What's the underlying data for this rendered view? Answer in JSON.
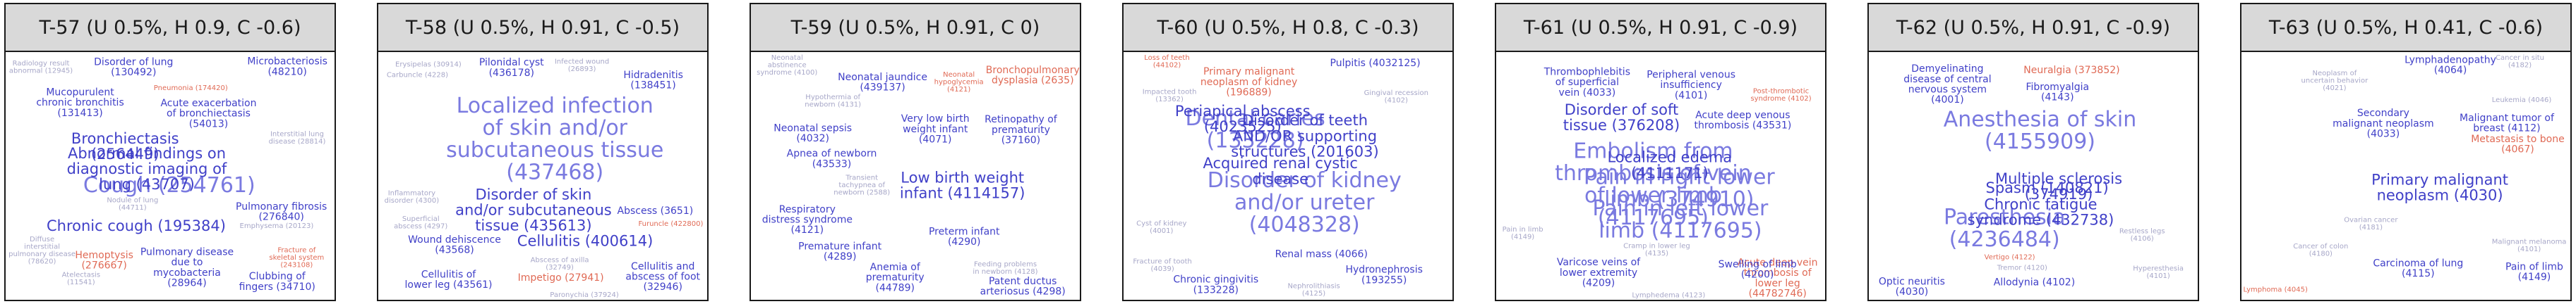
{
  "colors": {
    "frame": "#1a1a1a",
    "header_bg": "#d9d9d9",
    "word_dark": "#4040c8",
    "word_mid": "#7a7ae0",
    "word_faint": "#a7a7c8",
    "word_alt": "#e06a55"
  },
  "chart_data": [
    {
      "type": "wordcloud",
      "title": "T-57 (U 0.5%, H 0.9, C -0.6)",
      "words": [
        {
          "text": "Cough (254761)",
          "rank": 1
        },
        {
          "text": "Bronchiectasis (256449)",
          "rank": 2
        },
        {
          "text": "Chronic cough (195384)",
          "rank": 2
        },
        {
          "text": "Abnormal findings on diagnostic imaging of lung (43707)",
          "rank": 2
        },
        {
          "text": "Disorder of lung (130492)",
          "rank": 3
        },
        {
          "text": "Hemoptysis (276667)",
          "rank": 3
        },
        {
          "text": "Pulmonary disease due to mycobacteria (28964)",
          "rank": 3
        },
        {
          "text": "Microbacteriosis (48210)",
          "rank": 3
        },
        {
          "text": "Acute exacerbation of bronchiectasis (54013)",
          "rank": 3
        },
        {
          "text": "Mucopurulent chronic bronchitis (131413)",
          "rank": 3
        },
        {
          "text": "Pulmonary fibrosis (276840)",
          "rank": 3
        },
        {
          "text": "Clubbing of fingers (34710)",
          "rank": 3
        },
        {
          "text": "Fracture of skeletal system (243108)",
          "rank": 4
        },
        {
          "text": "Diffuse interstitial pulmonary disease (78620)",
          "rank": 4
        },
        {
          "text": "Atelectasis (11541)",
          "rank": 4
        },
        {
          "text": "Radiology result abnormal (12945)",
          "rank": 4
        },
        {
          "text": "Interstitial lung disease (28814)",
          "rank": 4
        },
        {
          "text": "Nodule of lung (44711)",
          "rank": 4
        },
        {
          "text": "Emphysema (20123)",
          "rank": 4
        },
        {
          "text": "Pneumonia (174420)",
          "rank": 4
        }
      ]
    },
    {
      "type": "wordcloud",
      "title": "T-58 (U 0.5%, H 0.91, C -0.5)",
      "words": [
        {
          "text": "Localized infection of skin and/or subcutaneous tissue (437468)",
          "rank": 1
        },
        {
          "text": "Disorder of skin and/or subcutaneous tissue (435613)",
          "rank": 2
        },
        {
          "text": "Cellulitis (400614)",
          "rank": 2
        },
        {
          "text": "Abscess (3651)",
          "rank": 3
        },
        {
          "text": "Cellulitis of lower leg (43561)",
          "rank": 3
        },
        {
          "text": "Impetigo (27941)",
          "rank": 3
        },
        {
          "text": "Cellulitis and abscess of foot (32946)",
          "rank": 3
        },
        {
          "text": "Wound dehiscence (43568)",
          "rank": 3
        },
        {
          "text": "Hidradenitis (138451)",
          "rank": 3
        },
        {
          "text": "Pilonidal cyst (436178)",
          "rank": 3
        },
        {
          "text": "Abscess of axilla (32749)",
          "rank": 4
        },
        {
          "text": "Superficial abscess (4297)",
          "rank": 4
        },
        {
          "text": "Furuncle (422800)",
          "rank": 4
        },
        {
          "text": "Carbuncle (4228)",
          "rank": 4
        },
        {
          "text": "Erysipelas (30914)",
          "rank": 4
        },
        {
          "text": "Infected wound (26893)",
          "rank": 4
        },
        {
          "text": "Paronychia (37924)",
          "rank": 4
        },
        {
          "text": "Inflammatory disorder (4300)",
          "rank": 4
        }
      ]
    },
    {
      "type": "wordcloud",
      "title": "T-59 (U 0.5%, H 0.91, C 0)",
      "words": [
        {
          "text": "Low birth weight infant (4114157)",
          "rank": 2
        },
        {
          "text": "Neonatal jaundice (439137)",
          "rank": 3
        },
        {
          "text": "Preterm infant (4290)",
          "rank": 3
        },
        {
          "text": "Respiratory distress syndrome (4121)",
          "rank": 3
        },
        {
          "text": "Premature infant (4289)",
          "rank": 3
        },
        {
          "text": "Bronchopulmonary dysplasia (2635)",
          "rank": 3
        },
        {
          "text": "Very low birth weight infant (4071)",
          "rank": 3
        },
        {
          "text": "Apnea of newborn (43533)",
          "rank": 3
        },
        {
          "text": "Anemia of prematurity (44789)",
          "rank": 3
        },
        {
          "text": "Neonatal sepsis (4032)",
          "rank": 3
        },
        {
          "text": "Patent ductus arteriosus (4298)",
          "rank": 3
        },
        {
          "text": "Retinopathy of prematurity (37160)",
          "rank": 3
        },
        {
          "text": "Neonatal hypoglycemia (4121)",
          "rank": 4
        },
        {
          "text": "Transient tachypnea of newborn (2588)",
          "rank": 4
        },
        {
          "text": "Feeding problems in newborn (4128)",
          "rank": 4
        },
        {
          "text": "Hypothermia of newborn (4131)",
          "rank": 4
        },
        {
          "text": "Neonatal abstinence syndrome (4100)",
          "rank": 4
        }
      ]
    },
    {
      "type": "wordcloud",
      "title": "T-60 (U 0.5%, H 0.8, C -0.3)",
      "words": [
        {
          "text": "Dental caries (133228)",
          "rank": 1
        },
        {
          "text": "Disorder of kidney and/or ureter (4048328)",
          "rank": 1
        },
        {
          "text": "Disorder of teeth AND/OR supporting structures (201603)",
          "rank": 2
        },
        {
          "text": "Periapical abscess (4023525)",
          "rank": 2
        },
        {
          "text": "Acquired renal cystic disease",
          "rank": 2
        },
        {
          "text": "Primary malignant neoplasm of kidney (196889)",
          "rank": 3
        },
        {
          "text": "Chronic gingivitis (133228)",
          "rank": 3
        },
        {
          "text": "Hydronephrosis (193255)",
          "rank": 3
        },
        {
          "text": "Pulpitis (4032125)",
          "rank": 3
        },
        {
          "text": "Renal mass (4066)",
          "rank": 3
        },
        {
          "text": "Fracture of tooth (4039)",
          "rank": 4
        },
        {
          "text": "Impacted tooth (13362)",
          "rank": 4
        },
        {
          "text": "Loss of teeth (44102)",
          "rank": 4
        },
        {
          "text": "Gingival recession (4102)",
          "rank": 4
        },
        {
          "text": "Cyst of kidney (4001)",
          "rank": 4
        },
        {
          "text": "Nephrolithiasis (4125)",
          "rank": 4
        }
      ]
    },
    {
      "type": "wordcloud",
      "title": "T-61 (U 0.5%, H 0.91, C -0.9)",
      "words": [
        {
          "text": "Embolism from thrombosis of vein of lower limb (4117695)",
          "rank": 1
        },
        {
          "text": "Pain in left lower limb (4117695)",
          "rank": 1
        },
        {
          "text": "Pain in right lower limb (374910)",
          "rank": 1
        },
        {
          "text": "Disorder of soft tissue (376208)",
          "rank": 2
        },
        {
          "text": "Localized edema (4111171)",
          "rank": 2
        },
        {
          "text": "Acute deep vein thrombosis of lower leg (44782746)",
          "rank": 3
        },
        {
          "text": "Thrombophlebitis of superficial vein (4033)",
          "rank": 3
        },
        {
          "text": "Varicose veins of lower extremity (4209)",
          "rank": 3
        },
        {
          "text": "Peripheral venous insufficiency (4101)",
          "rank": 3
        },
        {
          "text": "Acute deep venous thrombosis (43531)",
          "rank": 3
        },
        {
          "text": "Swelling of limb (4200)",
          "rank": 3
        },
        {
          "text": "Cramp in lower leg (4135)",
          "rank": 4
        },
        {
          "text": "Post-thrombotic syndrome (4102)",
          "rank": 4
        },
        {
          "text": "Pain in limb (4149)",
          "rank": 4
        },
        {
          "text": "Lymphedema (4123)",
          "rank": 4
        }
      ]
    },
    {
      "type": "wordcloud",
      "title": "T-62 (U 0.5%, H 0.91, C -0.9)",
      "words": [
        {
          "text": "Anesthesia of skin (4155909)",
          "rank": 1
        },
        {
          "text": "Paresthesia (4236484)",
          "rank": 1
        },
        {
          "text": "Spasm (140821)",
          "rank": 2
        },
        {
          "text": "Multiple sclerosis (374919)",
          "rank": 2
        },
        {
          "text": "Chronic fatigue syndrome (432738)",
          "rank": 2
        },
        {
          "text": "Neuralgia (373852)",
          "rank": 3
        },
        {
          "text": "Allodynia (4102)",
          "rank": 3
        },
        {
          "text": "Demyelinating disease of central nervous system (4001)",
          "rank": 3
        },
        {
          "text": "Optic neuritis (4030)",
          "rank": 3
        },
        {
          "text": "Fibromyalgia (4143)",
          "rank": 3
        },
        {
          "text": "Hyperesthesia (4101)",
          "rank": 4
        },
        {
          "text": "Tremor (4120)",
          "rank": 4
        },
        {
          "text": "Vertigo (4122)",
          "rank": 4
        },
        {
          "text": "Restless legs (4106)",
          "rank": 4
        }
      ]
    },
    {
      "type": "wordcloud",
      "title": "T-63 (U 0.5%, H 0.41, C -0.6)",
      "words": [
        {
          "text": "Primary malignant neoplasm (4030)",
          "rank": 2
        },
        {
          "text": "Secondary malignant neoplasm (4033)",
          "rank": 3
        },
        {
          "text": "Malignant tumor of breast (4112)",
          "rank": 3
        },
        {
          "text": "Pain of limb (4149)",
          "rank": 3
        },
        {
          "text": "Lymphadenopathy (4064)",
          "rank": 3
        },
        {
          "text": "Metastasis to bone (4067)",
          "rank": 3
        },
        {
          "text": "Carcinoma of lung (4115)",
          "rank": 3
        },
        {
          "text": "Neoplasm of uncertain behavior (4021)",
          "rank": 4
        },
        {
          "text": "Malignant melanoma (4101)",
          "rank": 4
        },
        {
          "text": "Cancer of colon (4180)",
          "rank": 4
        },
        {
          "text": "Ovarian cancer (4181)",
          "rank": 4
        },
        {
          "text": "Cancer in situ (4182)",
          "rank": 4
        },
        {
          "text": "Lymphoma (4045)",
          "rank": 4
        },
        {
          "text": "Leukemia (4046)",
          "rank": 4
        }
      ]
    }
  ]
}
